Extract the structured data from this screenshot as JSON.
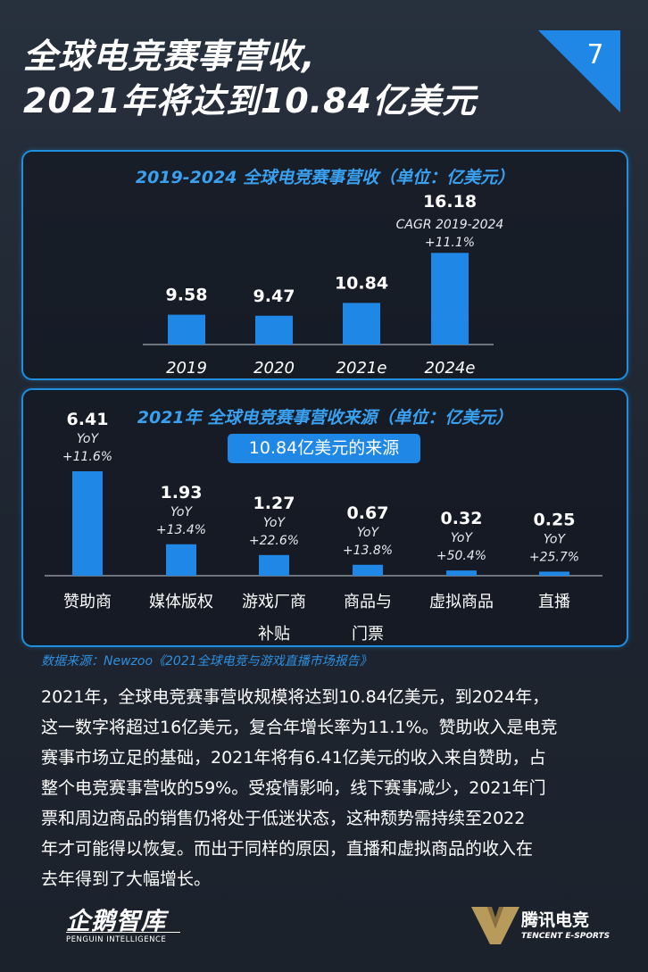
{
  "page": {
    "title_line1": "全球电竞赛事营收,",
    "title_line2": "2021年将达到10.84亿美元",
    "page_number": "7"
  },
  "colors": {
    "accent": "#1f87e6",
    "panel_border": "#1f8fe0",
    "panel_title": "#3aa0f0",
    "background": "#222a35"
  },
  "chart_data": [
    {
      "type": "bar",
      "title": "2019-2024 全球电竞赛事营收（单位：亿美元）",
      "categories": [
        "2019",
        "2020",
        "2021e",
        "2024e"
      ],
      "values": [
        9.58,
        9.47,
        10.84,
        16.18
      ],
      "value_labels": [
        "9.58",
        "9.47",
        "10.84",
        "16.18"
      ],
      "annotations": [
        {
          "category": "2024e",
          "lines": [
            "CAGR 2019-2024",
            "+11.1%"
          ]
        }
      ],
      "ylim": [
        6.4,
        16.4
      ]
    },
    {
      "type": "bar",
      "title": "2021年 全球电竞赛事营收来源（单位：亿美元）",
      "subtitle": "10.84亿美元的来源",
      "categories": [
        {
          "line1": "赞助商",
          "line2": ""
        },
        {
          "line1": "媒体版权",
          "line2": ""
        },
        {
          "line1": "游戏厂商",
          "line2": "补贴"
        },
        {
          "line1": "商品与",
          "line2": "门票"
        },
        {
          "line1": "虚拟商品",
          "line2": ""
        },
        {
          "line1": "直播",
          "line2": ""
        }
      ],
      "values": [
        6.41,
        1.93,
        1.27,
        0.67,
        0.32,
        0.25
      ],
      "value_labels": [
        "6.41",
        "1.93",
        "1.27",
        "0.67",
        "0.32",
        "0.25"
      ],
      "yoy_label": "YoY",
      "yoy": [
        "+11.6%",
        "+13.4%",
        "+22.6%",
        "+13.8%",
        "+50.4%",
        "+25.7%"
      ],
      "ylim": [
        0,
        6.41
      ]
    }
  ],
  "source": "数据来源：Newzoo《2021全球电竞与游戏直播市场报告》",
  "body_lines": [
    "2021年，全球电竞赛事营收规模将达到10.84亿美元，到2024年，",
    "这一数字将超过16亿美元，复合年增长率为11.1%。赞助收入是电竞",
    "赛事市场立足的基础，2021年将有6.41亿美元的收入来自赞助，占",
    "整个电竞赛事营收的59%。受疫情影响，线下赛事减少，2021年门",
    "票和周边商品的销售仍将处于低迷状态，这种颓势需持续至2022",
    "年才可能得以恢复。而出于同样的原因，直播和虚拟商品的收入在",
    "去年得到了大幅增长。"
  ],
  "footer": {
    "left_logo_main": "企鹅智库",
    "left_logo_sub": "PENGUIN INTELLIGENCE",
    "right_logo_main": "腾讯电竞",
    "right_logo_sub": "TENCENT E-SPORTS",
    "right_logo_icon": "v-shield-icon"
  }
}
